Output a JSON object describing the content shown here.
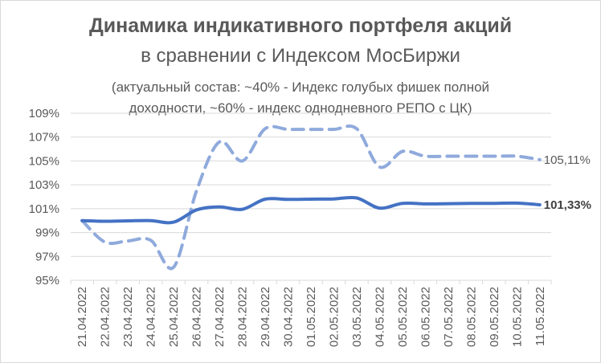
{
  "title": {
    "line1": "Динамика индикативного портфеля акций",
    "line2": "в сравнении с Индексом МосБиржи",
    "subtitle": "(актуальный состав: ~40% - Индекс голубых фишек полной доходности, ~60% - индекс однодневного РЕПО с ЦК)"
  },
  "chart_data": {
    "type": "line",
    "title": "Динамика индикативного портфеля акций в сравнении с Индексом МосБиржи",
    "subtitle": "(актуальный состав: ~40% - Индекс голубых фишек полной доходности, ~60% - индекс однодневного РЕПО с ЦК)",
    "x": [
      "21.04.2022",
      "22.04.2022",
      "23.04.2022",
      "24.04.2022",
      "25.04.2022",
      "26.04.2022",
      "27.04.2022",
      "28.04.2022",
      "29.04.2022",
      "30.04.2022",
      "01.05.2022",
      "02.05.2022",
      "03.05.2022",
      "04.05.2022",
      "05.05.2022",
      "06.05.2022",
      "07.05.2022",
      "08.05.2022",
      "09.05.2022",
      "10.05.2022",
      "11.05.2022"
    ],
    "yticks": [
      "95%",
      "97%",
      "99%",
      "101%",
      "103%",
      "105%",
      "107%",
      "109%"
    ],
    "ylim": [
      95,
      109
    ],
    "grid": true,
    "legend": "none",
    "series": [
      {
        "name": "",
        "style": "solid",
        "color": "#4472c4",
        "end_label": "101,33%",
        "values": [
          100.0,
          99.95,
          99.98,
          100.0,
          99.87,
          100.9,
          101.15,
          100.95,
          101.8,
          101.78,
          101.8,
          101.82,
          101.9,
          101.05,
          101.45,
          101.4,
          101.42,
          101.44,
          101.45,
          101.47,
          101.33
        ]
      },
      {
        "name": "",
        "style": "dashed",
        "color": "#8faadc",
        "end_label": "105,11%",
        "values": [
          100.0,
          98.2,
          98.3,
          98.35,
          96.1,
          102.5,
          106.6,
          105.0,
          107.7,
          107.65,
          107.65,
          107.65,
          107.7,
          104.5,
          105.8,
          105.4,
          105.4,
          105.4,
          105.4,
          105.4,
          105.11
        ]
      }
    ]
  }
}
